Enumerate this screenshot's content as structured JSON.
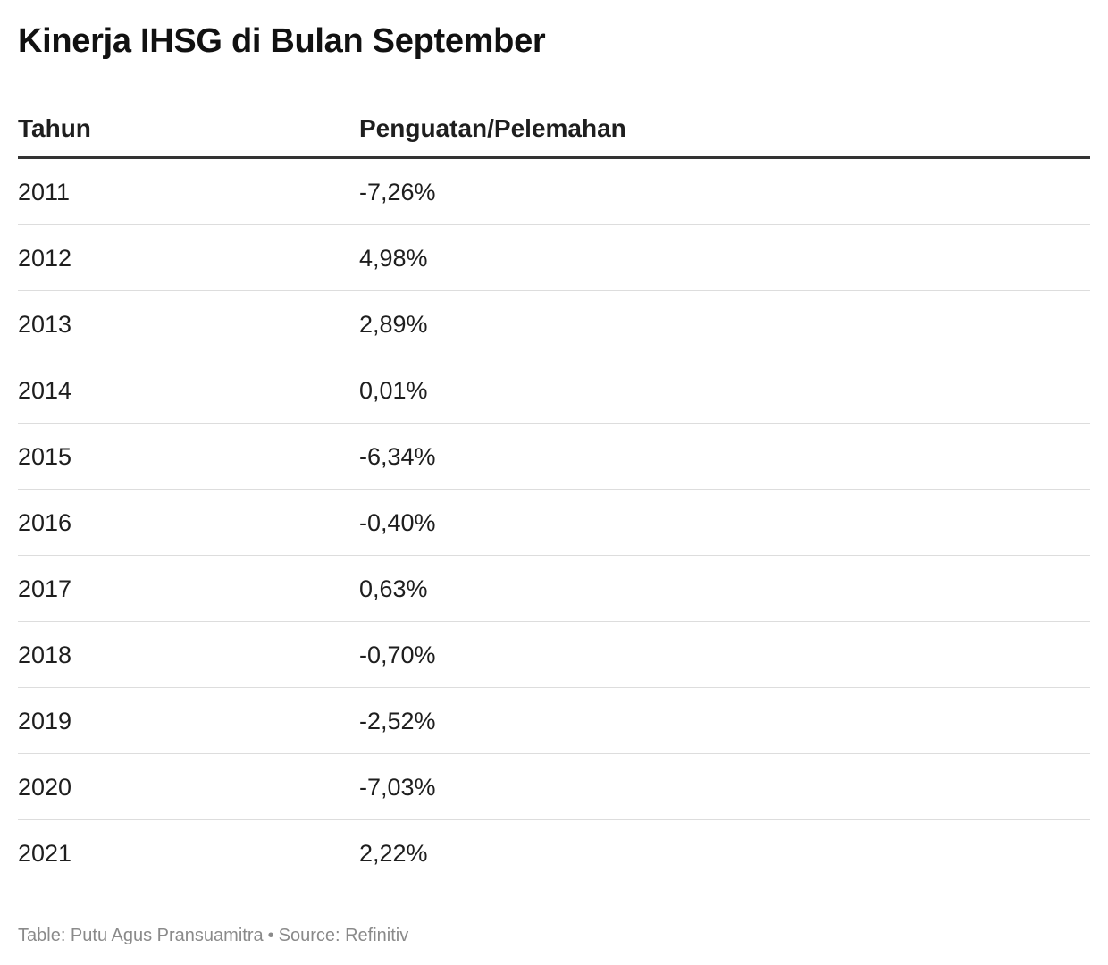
{
  "title": "Kinerja IHSG di Bulan September",
  "chart_data": {
    "type": "table",
    "title": "Kinerja IHSG di Bulan September",
    "columns": [
      "Tahun",
      "Penguatan/Pelemahan"
    ],
    "rows": [
      {
        "year": "2011",
        "value": "-7,26%"
      },
      {
        "year": "2012",
        "value": "4,98%"
      },
      {
        "year": "2013",
        "value": "2,89%"
      },
      {
        "year": "2014",
        "value": "0,01%"
      },
      {
        "year": "2015",
        "value": "-6,34%"
      },
      {
        "year": "2016",
        "value": "-0,40%"
      },
      {
        "year": "2017",
        "value": "0,63%"
      },
      {
        "year": "2018",
        "value": "-0,70%"
      },
      {
        "year": "2019",
        "value": "-2,52%"
      },
      {
        "year": "2020",
        "value": "-7,03%"
      },
      {
        "year": "2021",
        "value": "2,22%"
      }
    ]
  },
  "footer": {
    "credit": "Table: Putu Agus Pransuamitra",
    "separator": "•",
    "source": "Source: Refinitiv"
  },
  "colors": {
    "text": "#1e1e1e",
    "header_rule": "#333333",
    "row_rule": "#dddddd",
    "footer_text": "#8a8a8a"
  }
}
